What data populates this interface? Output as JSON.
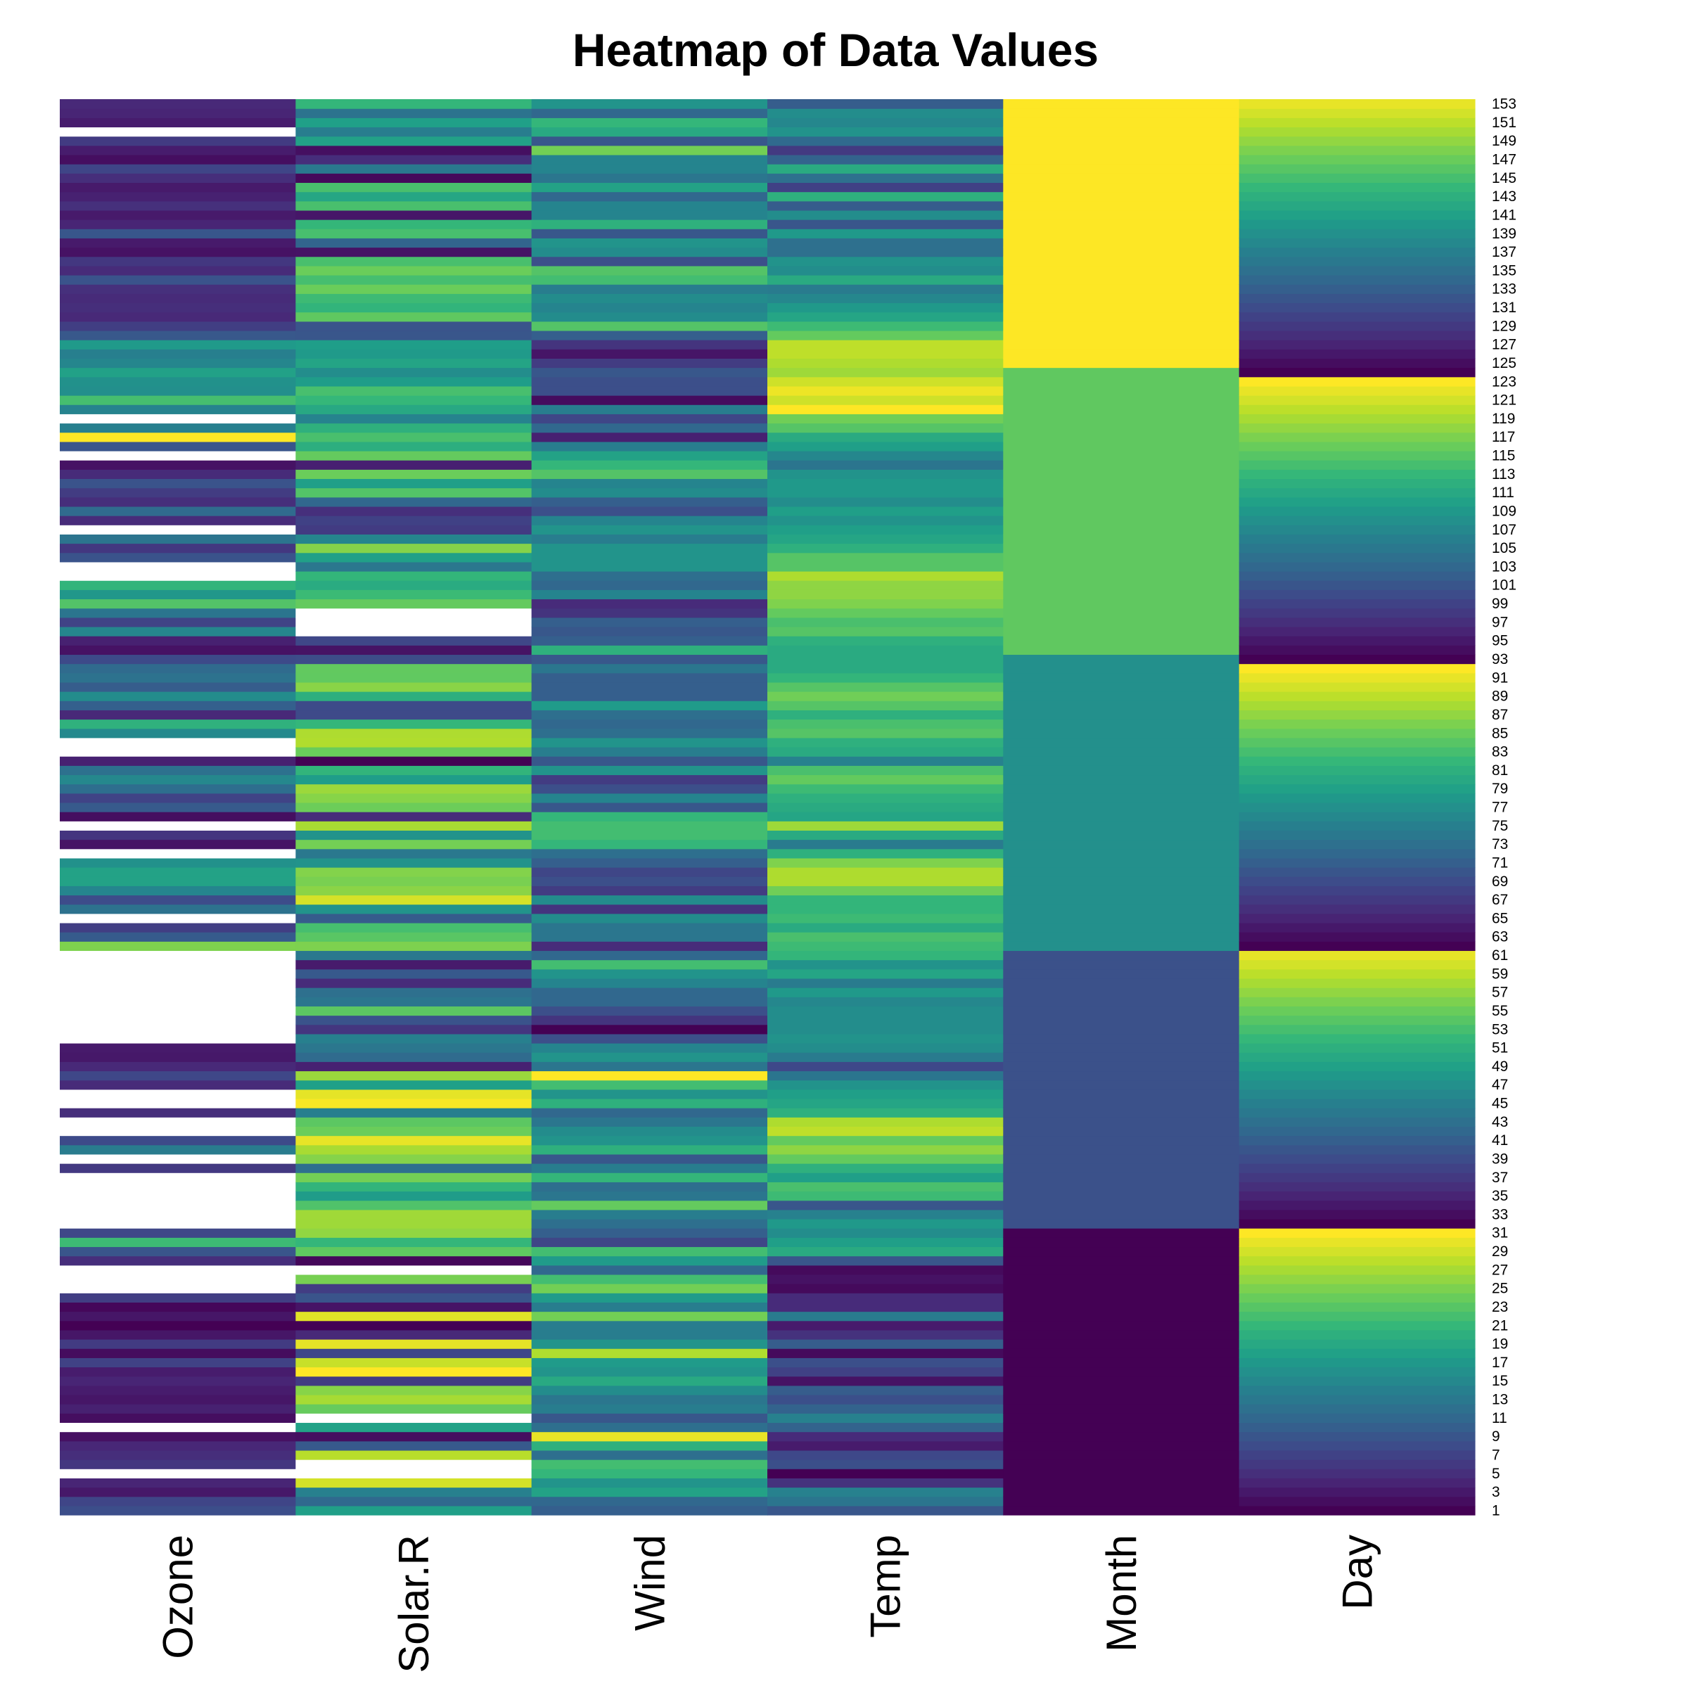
{
  "chart_data": {
    "type": "heatmap",
    "title": "Heatmap of Data Values",
    "columns": [
      "Ozone",
      "Solar.R",
      "Wind",
      "Temp",
      "Month",
      "Day"
    ],
    "row_count": 153,
    "row_labels_shown": [
      "1",
      "3",
      "5",
      "7",
      "9",
      "11",
      "13",
      "15",
      "17",
      "19",
      "21",
      "23",
      "25",
      "27",
      "29",
      "31",
      "33",
      "35",
      "37",
      "39",
      "41",
      "43",
      "45",
      "47",
      "49",
      "51",
      "53",
      "55",
      "57",
      "59",
      "61",
      "63",
      "65",
      "67",
      "69",
      "71",
      "73",
      "75",
      "77",
      "79",
      "81",
      "83",
      "85",
      "87",
      "89",
      "91",
      "93",
      "95",
      "97",
      "99",
      "101",
      "103",
      "105",
      "107",
      "109",
      "111",
      "113",
      "115",
      "117",
      "119",
      "121",
      "123",
      "125",
      "127",
      "129",
      "131",
      "133",
      "135",
      "137",
      "139",
      "141",
      "143",
      "145",
      "147",
      "149",
      "151",
      "153"
    ],
    "data": {
      "Ozone": [
        41,
        36,
        12,
        18,
        null,
        28,
        23,
        19,
        8,
        null,
        7,
        16,
        11,
        14,
        18,
        14,
        34,
        6,
        30,
        11,
        1,
        11,
        4,
        32,
        null,
        null,
        null,
        23,
        45,
        115,
        37,
        null,
        null,
        null,
        null,
        null,
        null,
        29,
        null,
        71,
        39,
        null,
        null,
        23,
        null,
        null,
        21,
        37,
        20,
        12,
        13,
        null,
        null,
        null,
        null,
        null,
        null,
        null,
        null,
        null,
        null,
        135,
        49,
        32,
        null,
        64,
        40,
        77,
        97,
        97,
        85,
        null,
        10,
        27,
        null,
        7,
        48,
        35,
        61,
        79,
        63,
        16,
        null,
        null,
        80,
        108,
        20,
        52,
        82,
        50,
        64,
        59,
        39,
        9,
        16,
        78,
        35,
        66,
        122,
        89,
        110,
        null,
        null,
        44,
        28,
        65,
        null,
        22,
        59,
        23,
        31,
        44,
        21,
        9,
        null,
        45,
        168,
        73,
        null,
        76,
        118,
        84,
        85,
        96,
        78,
        73,
        91,
        47,
        32,
        20,
        23,
        21,
        24,
        44,
        21,
        28,
        9,
        13,
        46,
        18,
        13,
        24,
        16,
        13,
        23,
        36,
        7,
        14,
        30,
        null,
        14,
        18,
        20
      ],
      "Solar.R": [
        190,
        118,
        149,
        313,
        null,
        null,
        299,
        99,
        19,
        194,
        null,
        256,
        290,
        274,
        65,
        334,
        307,
        78,
        322,
        44,
        8,
        320,
        25,
        92,
        66,
        266,
        null,
        13,
        252,
        223,
        279,
        286,
        287,
        242,
        186,
        220,
        264,
        127,
        273,
        291,
        323,
        259,
        250,
        148,
        332,
        322,
        191,
        284,
        37,
        120,
        137,
        150,
        59,
        91,
        250,
        135,
        127,
        47,
        98,
        31,
        138,
        269,
        248,
        236,
        101,
        175,
        314,
        276,
        267,
        272,
        175,
        139,
        264,
        175,
        291,
        48,
        260,
        274,
        285,
        187,
        220,
        7,
        258,
        295,
        294,
        223,
        81,
        82,
        213,
        275,
        253,
        254,
        83,
        24,
        77,
        null,
        null,
        null,
        255,
        229,
        207,
        222,
        137,
        192,
        273,
        157,
        64,
        71,
        51,
        115,
        244,
        190,
        259,
        36,
        255,
        212,
        238,
        215,
        153,
        203,
        225,
        237,
        188,
        167,
        197,
        183,
        189,
        95,
        92,
        252,
        220,
        230,
        259,
        236,
        259,
        238,
        24,
        112,
        237,
        224,
        27,
        238,
        201,
        238,
        14,
        139,
        49,
        20,
        193,
        145,
        191,
        131,
        223
      ],
      "Wind": [
        7.4,
        8.0,
        12.6,
        11.5,
        14.3,
        14.9,
        8.6,
        13.8,
        20.1,
        8.6,
        6.9,
        9.7,
        9.2,
        10.9,
        13.2,
        11.5,
        12.0,
        18.4,
        11.5,
        9.7,
        9.7,
        16.6,
        9.7,
        12.0,
        16.6,
        14.9,
        8.0,
        12.0,
        14.9,
        5.7,
        7.4,
        8.6,
        9.7,
        16.1,
        9.2,
        8.6,
        14.3,
        9.7,
        6.9,
        13.8,
        11.5,
        10.9,
        9.2,
        8.0,
        13.8,
        11.5,
        14.9,
        20.7,
        9.2,
        11.5,
        10.3,
        6.3,
        1.7,
        4.6,
        6.3,
        8.0,
        8.0,
        10.3,
        11.5,
        14.9,
        8.0,
        4.1,
        9.2,
        9.2,
        10.9,
        4.6,
        10.9,
        5.1,
        6.3,
        5.7,
        7.4,
        8.6,
        14.3,
        14.9,
        14.9,
        14.3,
        6.9,
        10.3,
        6.3,
        5.1,
        11.5,
        6.9,
        9.7,
        11.5,
        8.6,
        8.0,
        8.6,
        12.0,
        7.4,
        7.4,
        7.4,
        9.2,
        6.9,
        13.8,
        7.4,
        6.9,
        7.4,
        4.6,
        4.0,
        10.3,
        8.0,
        8.6,
        11.5,
        11.5,
        11.5,
        9.7,
        11.5,
        10.3,
        6.3,
        7.4,
        10.9,
        10.3,
        15.5,
        14.3,
        12.6,
        9.7,
        3.4,
        8.0,
        5.7,
        9.7,
        2.3,
        6.3,
        6.3,
        6.9,
        5.1,
        2.8,
        4.6,
        7.4,
        15.5,
        10.9,
        10.3,
        10.9,
        9.7,
        14.9,
        15.5,
        6.3,
        10.9,
        11.5,
        6.9,
        13.8,
        10.3,
        10.3,
        8.0,
        12.6,
        9.2,
        10.3,
        10.3,
        16.6,
        6.9,
        13.2,
        14.3,
        8.0,
        11.5
      ],
      "Temp": [
        67,
        72,
        74,
        62,
        56,
        66,
        65,
        59,
        61,
        69,
        74,
        69,
        66,
        68,
        58,
        64,
        66,
        57,
        68,
        62,
        59,
        73,
        61,
        61,
        57,
        58,
        57,
        67,
        81,
        79,
        76,
        78,
        74,
        67,
        84,
        85,
        79,
        82,
        87,
        90,
        87,
        93,
        92,
        82,
        80,
        79,
        77,
        72,
        65,
        73,
        76,
        77,
        76,
        76,
        76,
        75,
        78,
        73,
        80,
        77,
        83,
        84,
        85,
        81,
        84,
        83,
        83,
        88,
        92,
        92,
        89,
        82,
        73,
        81,
        91,
        80,
        81,
        82,
        84,
        87,
        85,
        74,
        81,
        82,
        86,
        85,
        82,
        86,
        88,
        86,
        83,
        81,
        81,
        81,
        82,
        86,
        85,
        87,
        89,
        90,
        90,
        92,
        86,
        86,
        82,
        80,
        79,
        77,
        79,
        76,
        78,
        78,
        77,
        72,
        75,
        79,
        81,
        86,
        88,
        97,
        94,
        96,
        94,
        91,
        92,
        93,
        93,
        87,
        84,
        80,
        78,
        75,
        73,
        81,
        76,
        77,
        71,
        71,
        78,
        67,
        76,
        68,
        82,
        64,
        71,
        81,
        69,
        63,
        70,
        77,
        75,
        76,
        68
      ],
      "Month": [
        5,
        5,
        5,
        5,
        5,
        5,
        5,
        5,
        5,
        5,
        5,
        5,
        5,
        5,
        5,
        5,
        5,
        5,
        5,
        5,
        5,
        5,
        5,
        5,
        5,
        5,
        5,
        5,
        5,
        5,
        5,
        6,
        6,
        6,
        6,
        6,
        6,
        6,
        6,
        6,
        6,
        6,
        6,
        6,
        6,
        6,
        6,
        6,
        6,
        6,
        6,
        6,
        6,
        6,
        6,
        6,
        6,
        6,
        6,
        6,
        6,
        7,
        7,
        7,
        7,
        7,
        7,
        7,
        7,
        7,
        7,
        7,
        7,
        7,
        7,
        7,
        7,
        7,
        7,
        7,
        7,
        7,
        7,
        7,
        7,
        7,
        7,
        7,
        7,
        7,
        7,
        7,
        7,
        8,
        8,
        8,
        8,
        8,
        8,
        8,
        8,
        8,
        8,
        8,
        8,
        8,
        8,
        8,
        8,
        8,
        8,
        8,
        8,
        8,
        8,
        8,
        8,
        8,
        8,
        8,
        8,
        8,
        8,
        8,
        9,
        9,
        9,
        9,
        9,
        9,
        9,
        9,
        9,
        9,
        9,
        9,
        9,
        9,
        9,
        9,
        9,
        9,
        9,
        9,
        9,
        9,
        9,
        9,
        9,
        9,
        9,
        9,
        9
      ],
      "Day": [
        1,
        2,
        3,
        4,
        5,
        6,
        7,
        8,
        9,
        10,
        11,
        12,
        13,
        14,
        15,
        16,
        17,
        18,
        19,
        20,
        21,
        22,
        23,
        24,
        25,
        26,
        27,
        28,
        29,
        30,
        31,
        1,
        2,
        3,
        4,
        5,
        6,
        7,
        8,
        9,
        10,
        11,
        12,
        13,
        14,
        15,
        16,
        17,
        18,
        19,
        20,
        21,
        22,
        23,
        24,
        25,
        26,
        27,
        28,
        29,
        30,
        1,
        2,
        3,
        4,
        5,
        6,
        7,
        8,
        9,
        10,
        11,
        12,
        13,
        14,
        15,
        16,
        17,
        18,
        19,
        20,
        21,
        22,
        23,
        24,
        25,
        26,
        27,
        28,
        29,
        30,
        31,
        1,
        2,
        3,
        4,
        5,
        6,
        7,
        8,
        9,
        10,
        11,
        12,
        13,
        14,
        15,
        16,
        17,
        18,
        19,
        20,
        21,
        22,
        23,
        24,
        25,
        26,
        27,
        28,
        29,
        30,
        31,
        1,
        2,
        3,
        4,
        5,
        6,
        7,
        8,
        9,
        10,
        11,
        12,
        13,
        14,
        15,
        16,
        17,
        18,
        19,
        20,
        21,
        22,
        23,
        24,
        25,
        26,
        27,
        28,
        29,
        30
      ]
    },
    "colormap": [
      "#440154",
      "#482878",
      "#3e4989",
      "#31688e",
      "#26828e",
      "#1f9e89",
      "#35b779",
      "#6ece58",
      "#b5de2b",
      "#fde725"
    ],
    "missing_color": "#ffffff",
    "row_order": "bottom-to-top",
    "legend": "none"
  }
}
